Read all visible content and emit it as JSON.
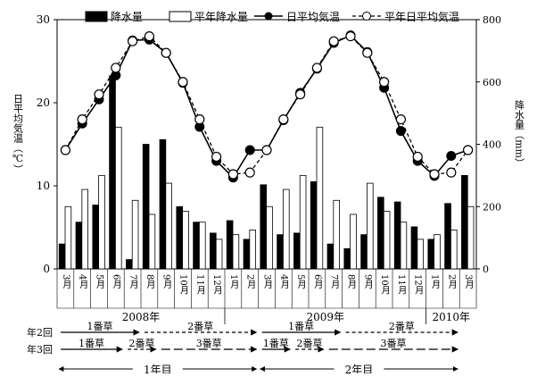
{
  "chart_data": {
    "type": "bar+line",
    "title": "",
    "categories": [
      "3月",
      "4月",
      "5月",
      "6月",
      "7月",
      "8月",
      "9月",
      "10月",
      "11月",
      "12月",
      "1月",
      "2月",
      "3月",
      "4月",
      "5月",
      "6月",
      "7月",
      "8月",
      "9月",
      "10月",
      "11月",
      "12月",
      "1月",
      "2月",
      "3月"
    ],
    "year_labels": [
      {
        "label": "2008年",
        "from": 0,
        "to": 9
      },
      {
        "label": "2009年",
        "from": 10,
        "to": 21
      },
      {
        "label": "2010年",
        "from": 22,
        "to": 24
      }
    ],
    "ylabel_left": "日平均気温（℃）",
    "ylabel_right": "降水量（mm）",
    "ylim_left": [
      0,
      30
    ],
    "yticks_left": [
      0,
      10,
      20,
      30
    ],
    "ylim_right": [
      0,
      800
    ],
    "yticks_right": [
      0,
      200,
      400,
      600,
      800
    ],
    "legend_position": "top",
    "series": [
      {
        "name": "降水量",
        "kind": "bar",
        "axis": "right",
        "color": "#000000",
        "values": [
          80,
          150,
          205,
          620,
          30,
          400,
          415,
          200,
          150,
          115,
          155,
          95,
          270,
          110,
          115,
          280,
          80,
          65,
          110,
          230,
          215,
          135,
          95,
          210,
          300
        ]
      },
      {
        "name": "平年降水量",
        "kind": "bar",
        "axis": "right",
        "color": "#ffffff",
        "values": [
          200,
          255,
          300,
          455,
          220,
          175,
          275,
          185,
          150,
          95,
          110,
          125,
          200,
          255,
          300,
          455,
          220,
          175,
          275,
          185,
          150,
          95,
          110,
          125,
          200
        ]
      },
      {
        "name": "日平均気温",
        "kind": "line",
        "axis": "left",
        "style": "solid",
        "marker": "filled-circle",
        "values": [
          14.3,
          17.5,
          20.4,
          23.3,
          27.5,
          27.6,
          26.0,
          22.4,
          17.1,
          13.0,
          11.0,
          14.3,
          14.3,
          17.9,
          21.2,
          24.1,
          27.2,
          28.1,
          26.1,
          21.8,
          16.6,
          13.0,
          11.2,
          13.6,
          14.3
        ]
      },
      {
        "name": "平年日平均気温",
        "kind": "line",
        "axis": "left",
        "style": "dashed",
        "marker": "open-circle",
        "values": [
          14.3,
          18.0,
          21.0,
          24.2,
          27.4,
          28.0,
          26.0,
          22.5,
          18.0,
          13.5,
          11.4,
          11.6,
          14.3,
          18.0,
          21.0,
          24.2,
          27.4,
          28.0,
          26.0,
          22.5,
          18.0,
          13.5,
          11.4,
          11.6,
          14.3
        ]
      }
    ]
  },
  "schedule": {
    "rows": [
      {
        "label": "年2回",
        "segments": [
          {
            "text": "1番草",
            "from": 0,
            "to": 5,
            "style": "solid"
          },
          {
            "text": "2番草",
            "from": 5,
            "to": 12,
            "style": "dashed"
          },
          {
            "text": "1番草",
            "from": 12,
            "to": 17,
            "style": "solid"
          },
          {
            "text": "2番草",
            "from": 17,
            "to": 24,
            "style": "dashed"
          }
        ]
      },
      {
        "label": "年3回",
        "segments": [
          {
            "text": "1番草",
            "from": 0,
            "to": 4,
            "style": "solid"
          },
          {
            "text": "2番草",
            "from": 4,
            "to": 6,
            "style": "dashed"
          },
          {
            "text": "3番草",
            "from": 6,
            "to": 12,
            "style": "longdash"
          },
          {
            "text": "1番草",
            "from": 12,
            "to": 14,
            "style": "solid"
          },
          {
            "text": "2番草",
            "from": 14,
            "to": 16,
            "style": "dashed"
          },
          {
            "text": "3番草",
            "from": 16,
            "to": 24,
            "style": "longdash"
          }
        ]
      }
    ],
    "periods": [
      {
        "text": "1年目",
        "from": 0,
        "to": 12
      },
      {
        "text": "2年目",
        "from": 12,
        "to": 24
      }
    ]
  }
}
